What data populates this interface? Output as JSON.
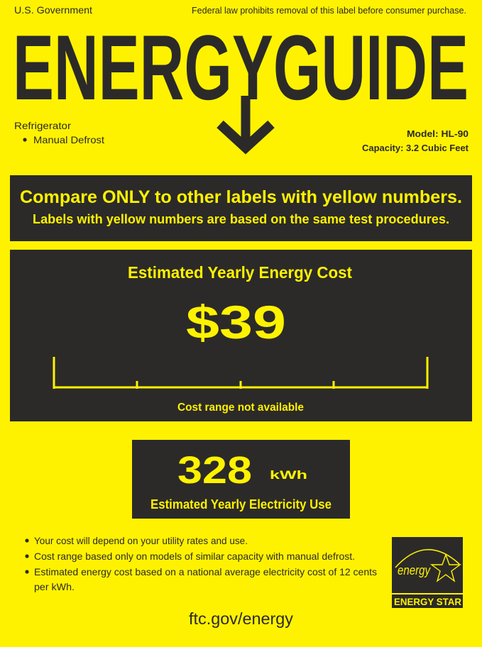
{
  "colors": {
    "background": "#fff200",
    "dark": "#2b2a29",
    "accent_text": "#fff200"
  },
  "header": {
    "left": "U.S. Government",
    "right": "Federal law prohibits removal of this label before consumer purchase.",
    "title": "ENERGYGUIDE"
  },
  "appliance": {
    "type": "Refrigerator",
    "feature": "Manual Defrost",
    "model": "Model: HL-90",
    "capacity": "Capacity: 3.2 Cubic Feet"
  },
  "compare": {
    "line1": "Compare ONLY to other labels with yellow numbers.",
    "line2": "Labels with yellow numbers are based on the same test procedures."
  },
  "cost": {
    "title": "Estimated Yearly Energy Cost",
    "value": "$39",
    "range_note": "Cost range not available"
  },
  "electricity": {
    "value": "328",
    "unit": "kWh",
    "label": "Estimated Yearly Electricity Use"
  },
  "notes": [
    "Your cost will depend on your utility rates and use.",
    "Cost range based only on models of similar capacity with manual defrost.",
    "Estimated energy cost based on a national average electricity cost of 12 cents",
    "per kWh."
  ],
  "energy_star": {
    "script": "energy",
    "label": "ENERGY STAR"
  },
  "footer": {
    "link": "ftc.gov/energy"
  }
}
